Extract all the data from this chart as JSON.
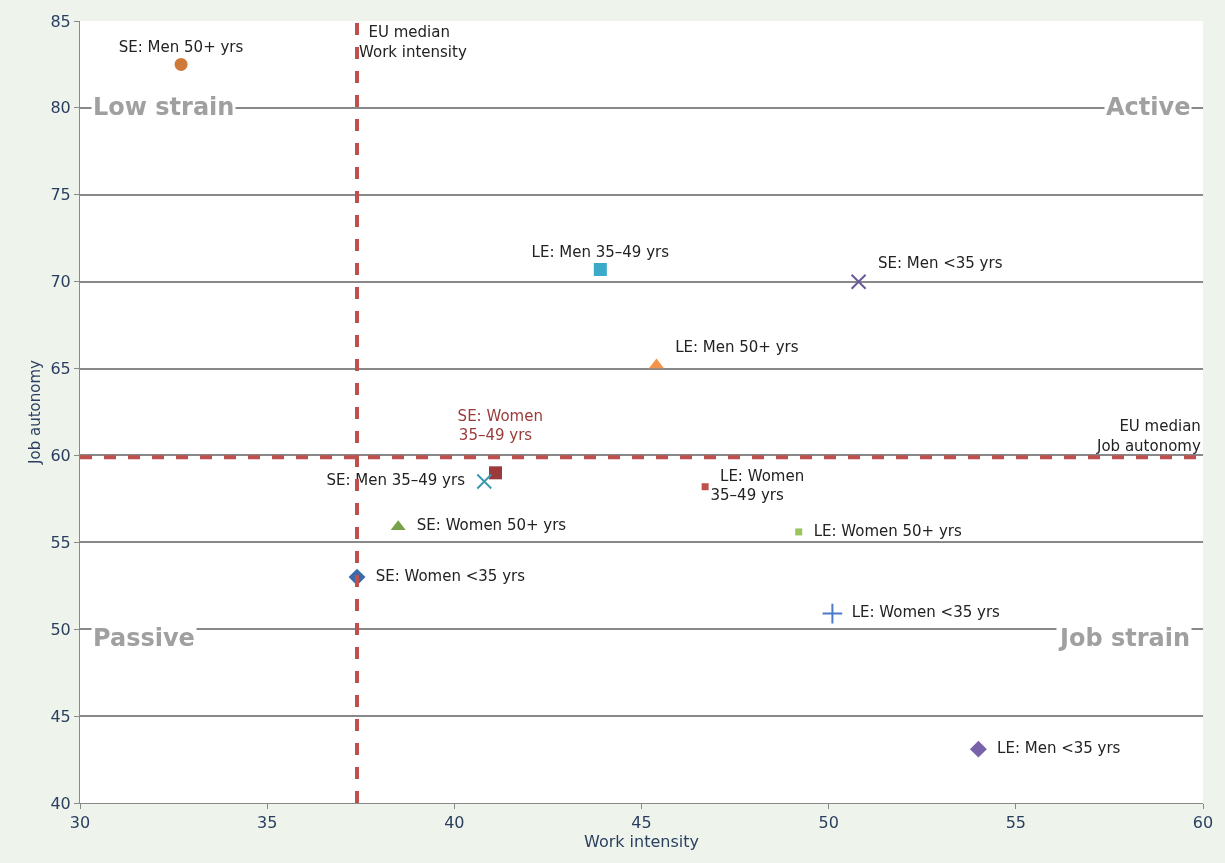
{
  "chart_data": {
    "type": "scatter",
    "xlabel": "Work intensity",
    "ylabel": "Job autonomy",
    "xlim": [
      30,
      60
    ],
    "xticks": [
      30,
      35,
      40,
      45,
      50,
      55,
      60
    ],
    "ylim": [
      40,
      85
    ],
    "yticks": [
      40,
      45,
      50,
      55,
      60,
      65,
      70,
      75,
      80,
      85
    ],
    "grid": "y",
    "legend": false,
    "series": [
      {
        "name": "SE: Men 50+ yrs",
        "color": "#d07a3a",
        "marker": "circle",
        "x": [
          32.7
        ],
        "values": [
          82.5
        ]
      },
      {
        "name": "LE: Men 35–49 yrs",
        "color": "#3aaac8",
        "marker": "square",
        "x": [
          43.9
        ],
        "values": [
          70.7
        ]
      },
      {
        "name": "SE: Men <35 yrs",
        "color": "#6a5a9a",
        "marker": "cross",
        "x": [
          50.8
        ],
        "values": [
          70.0
        ]
      },
      {
        "name": "LE: Men 50+ yrs",
        "color": "#f4944a",
        "marker": "triangle",
        "x": [
          45.4
        ],
        "values": [
          65.2
        ]
      },
      {
        "name": "SE: Women 35–49 yrs",
        "color": "#9a3a3a",
        "marker": "square",
        "x": [
          41.1
        ],
        "values": [
          59.0
        ]
      },
      {
        "name": "SE: Men 35–49 yrs",
        "color": "#3a9ab0",
        "marker": "cross",
        "x": [
          40.8
        ],
        "values": [
          58.5
        ]
      },
      {
        "name": "LE: Women 35–49 yrs",
        "color": "#c0504d",
        "marker": "square",
        "x": [
          46.7
        ],
        "values": [
          58.2
        ]
      },
      {
        "name": "SE: Women 50+ yrs",
        "color": "#77a04a",
        "marker": "triangle",
        "x": [
          38.5
        ],
        "values": [
          55.9
        ]
      },
      {
        "name": "LE: Women 50+ yrs",
        "color": "#9bc45a",
        "marker": "square",
        "x": [
          49.2
        ],
        "values": [
          55.6
        ]
      },
      {
        "name": "SE: Women <35 yrs",
        "color": "#3a6aaa",
        "marker": "diamond",
        "x": [
          37.4
        ],
        "values": [
          53.0
        ]
      },
      {
        "name": "LE: Women <35 yrs",
        "color": "#4a7ac8",
        "marker": "plus",
        "x": [
          50.1
        ],
        "values": [
          50.9
        ]
      },
      {
        "name": "LE: Men <35 yrs",
        "color": "#7a62aa",
        "marker": "diamond",
        "x": [
          54.0
        ],
        "values": [
          43.1
        ]
      }
    ],
    "ref_lines": [
      {
        "axis": "x",
        "value": 37.4,
        "label": "EU median\nWork intensity",
        "color": "#c0504d",
        "line_style": "dashed"
      },
      {
        "axis": "y",
        "value": 59.9,
        "label": "EU median\nJob autonomy",
        "color": "#c0504d",
        "line_style": "dashed"
      }
    ],
    "annotations": [
      "Low strain",
      "Active",
      "Passive",
      "Job strain"
    ]
  }
}
